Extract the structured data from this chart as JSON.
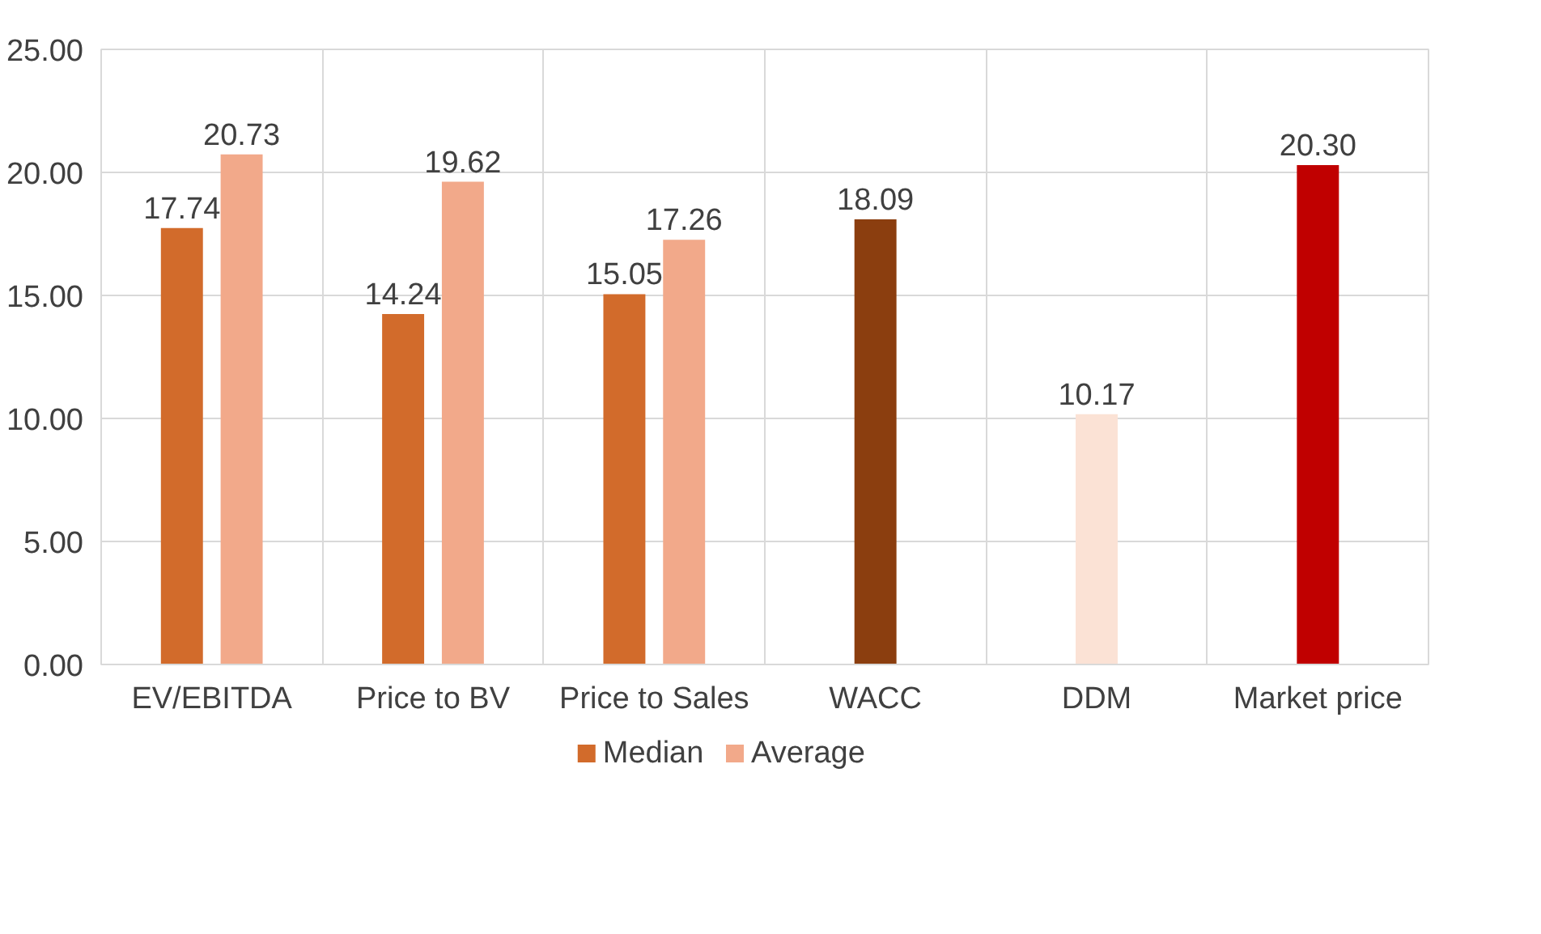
{
  "chart_data": {
    "type": "bar",
    "categories": [
      "EV/EBITDA",
      "Price to BV",
      "Price to Sales",
      "WACC",
      "DDM",
      "Market price"
    ],
    "series": [
      {
        "name": "Median",
        "color": "#d26b2b",
        "colors": [
          "#d26b2b",
          "#d26b2b",
          "#d26b2b",
          "#8b3e0f",
          null,
          "#c00000"
        ],
        "values": [
          17.74,
          14.24,
          15.05,
          18.09,
          null,
          20.3
        ],
        "value_labels": [
          "17.74",
          "14.24",
          "15.05",
          "18.09",
          null,
          "20.30"
        ]
      },
      {
        "name": "Average",
        "color": "#f2a98a",
        "colors": [
          "#f2a98a",
          "#f2a98a",
          "#f2a98a",
          null,
          "#fbe2d5",
          null
        ],
        "values": [
          20.73,
          19.62,
          17.26,
          null,
          10.17,
          null
        ],
        "value_labels": [
          "20.73",
          "19.62",
          "17.26",
          null,
          "10.17",
          null
        ]
      }
    ],
    "ylim": [
      0,
      25
    ],
    "yticks": [
      {
        "value": 0,
        "label": "0.00"
      },
      {
        "value": 5,
        "label": "5.00"
      },
      {
        "value": 10,
        "label": "10.00"
      },
      {
        "value": 15,
        "label": "15.00"
      },
      {
        "value": 20,
        "label": "20.00"
      },
      {
        "value": 25,
        "label": "25.00"
      }
    ],
    "grid": true,
    "legend": "bottom"
  }
}
